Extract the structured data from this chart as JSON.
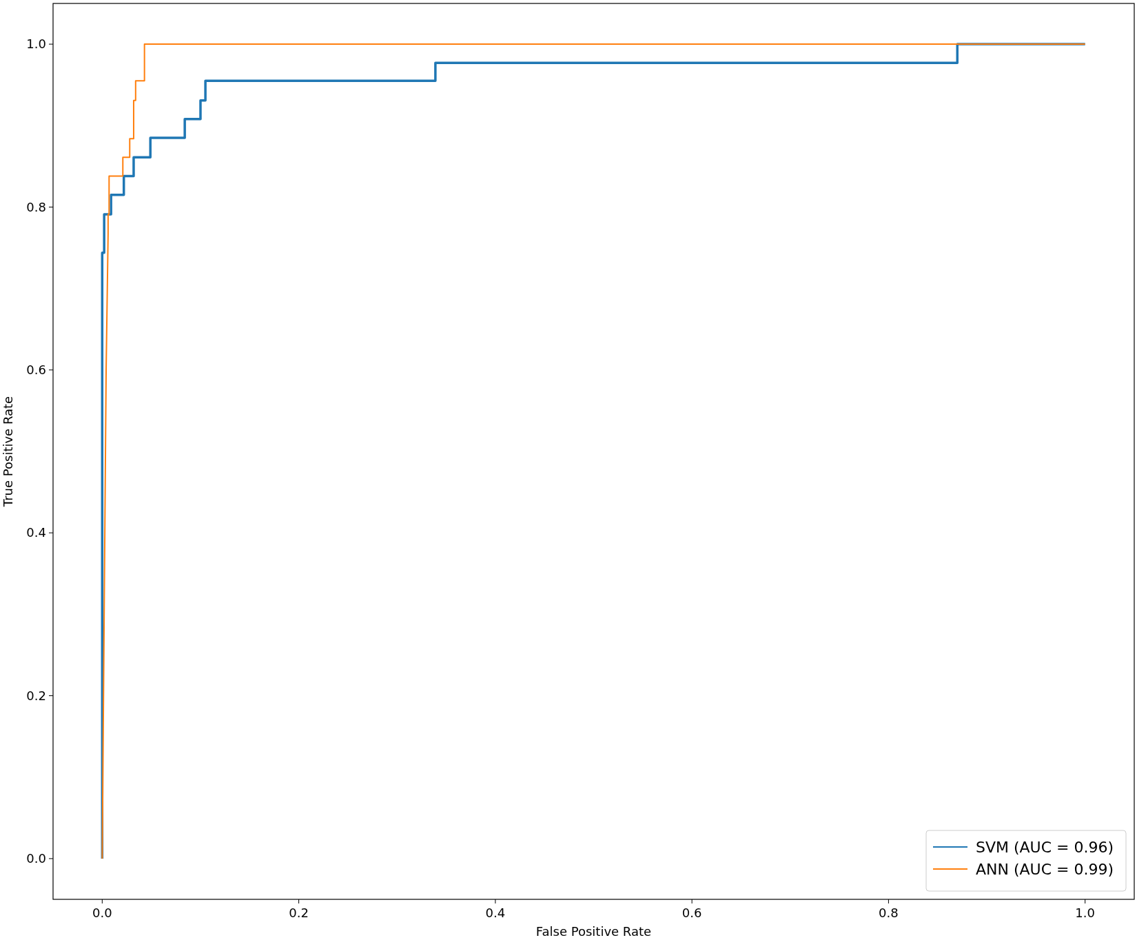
{
  "chart_data": {
    "type": "line",
    "xlabel": "False Positive Rate",
    "ylabel": "True Positive Rate",
    "xlim": [
      -0.05,
      1.05
    ],
    "ylim": [
      -0.05,
      1.05
    ],
    "xticks": [
      {
        "value": 0,
        "label": "0.0"
      },
      {
        "value": 0.2,
        "label": "0.2"
      },
      {
        "value": 0.4,
        "label": "0.4"
      },
      {
        "value": 0.6,
        "label": "0.6"
      },
      {
        "value": 0.8,
        "label": "0.8"
      },
      {
        "value": 1,
        "label": "1.0"
      }
    ],
    "yticks": [
      {
        "value": 0,
        "label": "0.0"
      },
      {
        "value": 0.2,
        "label": "0.2"
      },
      {
        "value": 0.4,
        "label": "0.4"
      },
      {
        "value": 0.6,
        "label": "0.6"
      },
      {
        "value": 0.8,
        "label": "0.8"
      },
      {
        "value": 1,
        "label": "1.0"
      }
    ],
    "legend": "bottom right",
    "grid": false,
    "marker": "none",
    "line_style": "solid",
    "series": [
      {
        "name": "SVM (AUC = 0.96)",
        "color": "#1f77b4",
        "x": [
          0,
          0,
          0.002,
          0.002,
          0.009,
          0.009,
          0.022,
          0.022,
          0.032,
          0.032,
          0.049,
          0.049,
          0.084,
          0.084,
          0.1,
          0.1,
          0.105,
          0.105,
          0.339,
          0.339,
          0.87,
          0.87,
          1
        ],
        "values": [
          0,
          0.744,
          0.744,
          0.791,
          0.791,
          0.815,
          0.815,
          0.838,
          0.838,
          0.861,
          0.861,
          0.885,
          0.885,
          0.908,
          0.908,
          0.931,
          0.931,
          0.955,
          0.955,
          0.977,
          0.977,
          1,
          1
        ]
      },
      {
        "name": "ANN (AUC = 0.99)",
        "color": "#ff7f0e",
        "x": [
          0,
          0.004,
          0.006,
          0.006,
          0.007,
          0.007,
          0.021,
          0.021,
          0.028,
          0.028,
          0.032,
          0.032,
          0.034,
          0.034,
          0.043,
          0.043,
          1
        ],
        "values": [
          0,
          0.6,
          0.767,
          0.791,
          0.791,
          0.838,
          0.838,
          0.861,
          0.861,
          0.884,
          0.884,
          0.931,
          0.931,
          0.955,
          0.955,
          1,
          1
        ]
      }
    ]
  }
}
